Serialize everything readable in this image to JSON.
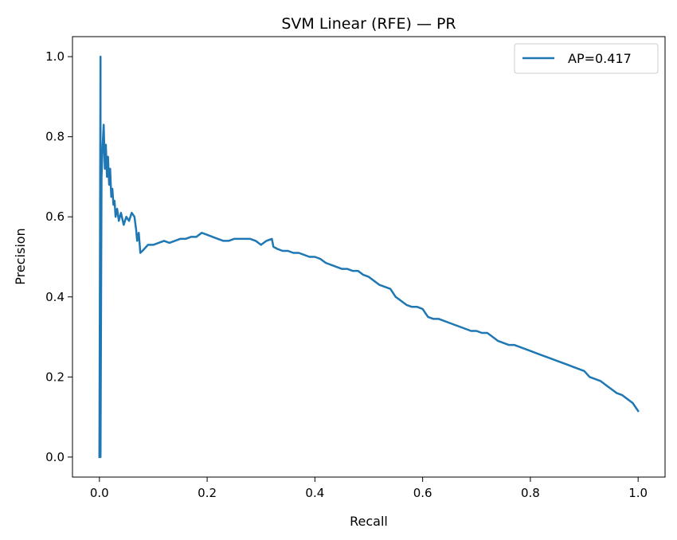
{
  "chart_data": {
    "type": "line",
    "title": "SVM Linear (RFE) — PR",
    "xlabel": "Recall",
    "ylabel": "Precision",
    "xlim": [
      -0.05,
      1.05
    ],
    "ylim": [
      -0.05,
      1.05
    ],
    "xticks": [
      0.0,
      0.2,
      0.4,
      0.6,
      0.8,
      1.0
    ],
    "yticks": [
      0.0,
      0.2,
      0.4,
      0.6,
      0.8,
      1.0
    ],
    "xtick_labels": [
      "0.0",
      "0.2",
      "0.4",
      "0.6",
      "0.8",
      "1.0"
    ],
    "ytick_labels": [
      "0.0",
      "0.2",
      "0.4",
      "0.6",
      "0.8",
      "1.0"
    ],
    "grid": false,
    "legend_position": "top-right",
    "series": [
      {
        "name": "AP=0.417",
        "color": "#1f77b4",
        "x": [
          0.0,
          0.0,
          0.002,
          0.002,
          0.004,
          0.006,
          0.008,
          0.01,
          0.012,
          0.014,
          0.016,
          0.018,
          0.02,
          0.022,
          0.024,
          0.026,
          0.028,
          0.03,
          0.033,
          0.036,
          0.04,
          0.045,
          0.05,
          0.055,
          0.06,
          0.065,
          0.068,
          0.07,
          0.073,
          0.076,
          0.08,
          0.09,
          0.1,
          0.11,
          0.12,
          0.13,
          0.14,
          0.15,
          0.16,
          0.17,
          0.18,
          0.19,
          0.2,
          0.21,
          0.22,
          0.23,
          0.24,
          0.25,
          0.26,
          0.27,
          0.28,
          0.29,
          0.3,
          0.31,
          0.32,
          0.323,
          0.33,
          0.34,
          0.35,
          0.36,
          0.37,
          0.38,
          0.39,
          0.4,
          0.41,
          0.42,
          0.43,
          0.44,
          0.45,
          0.46,
          0.47,
          0.48,
          0.49,
          0.5,
          0.51,
          0.52,
          0.53,
          0.54,
          0.55,
          0.56,
          0.57,
          0.58,
          0.59,
          0.6,
          0.61,
          0.62,
          0.63,
          0.64,
          0.65,
          0.66,
          0.67,
          0.68,
          0.69,
          0.7,
          0.71,
          0.72,
          0.73,
          0.74,
          0.75,
          0.76,
          0.77,
          0.78,
          0.79,
          0.8,
          0.81,
          0.82,
          0.83,
          0.84,
          0.85,
          0.86,
          0.87,
          0.88,
          0.89,
          0.9,
          0.91,
          0.92,
          0.93,
          0.94,
          0.95,
          0.96,
          0.97,
          0.98,
          0.99,
          0.995,
          1.0
        ],
        "y": [
          0.0,
          0.0,
          1.0,
          0.0,
          0.7,
          0.78,
          0.83,
          0.72,
          0.78,
          0.7,
          0.75,
          0.68,
          0.72,
          0.65,
          0.67,
          0.63,
          0.64,
          0.6,
          0.62,
          0.59,
          0.61,
          0.58,
          0.6,
          0.59,
          0.61,
          0.6,
          0.57,
          0.54,
          0.56,
          0.51,
          0.515,
          0.53,
          0.53,
          0.535,
          0.54,
          0.535,
          0.54,
          0.545,
          0.545,
          0.55,
          0.55,
          0.56,
          0.555,
          0.55,
          0.545,
          0.54,
          0.54,
          0.545,
          0.545,
          0.545,
          0.545,
          0.54,
          0.53,
          0.54,
          0.545,
          0.525,
          0.52,
          0.515,
          0.515,
          0.51,
          0.51,
          0.505,
          0.5,
          0.5,
          0.495,
          0.485,
          0.48,
          0.475,
          0.47,
          0.47,
          0.465,
          0.465,
          0.455,
          0.45,
          0.44,
          0.43,
          0.425,
          0.42,
          0.4,
          0.39,
          0.38,
          0.375,
          0.375,
          0.37,
          0.35,
          0.345,
          0.345,
          0.34,
          0.335,
          0.33,
          0.325,
          0.32,
          0.315,
          0.315,
          0.31,
          0.31,
          0.3,
          0.29,
          0.285,
          0.28,
          0.28,
          0.275,
          0.27,
          0.265,
          0.26,
          0.255,
          0.25,
          0.245,
          0.24,
          0.235,
          0.23,
          0.225,
          0.22,
          0.215,
          0.2,
          0.195,
          0.19,
          0.18,
          0.17,
          0.16,
          0.155,
          0.145,
          0.135,
          0.125,
          0.115
        ]
      }
    ]
  }
}
